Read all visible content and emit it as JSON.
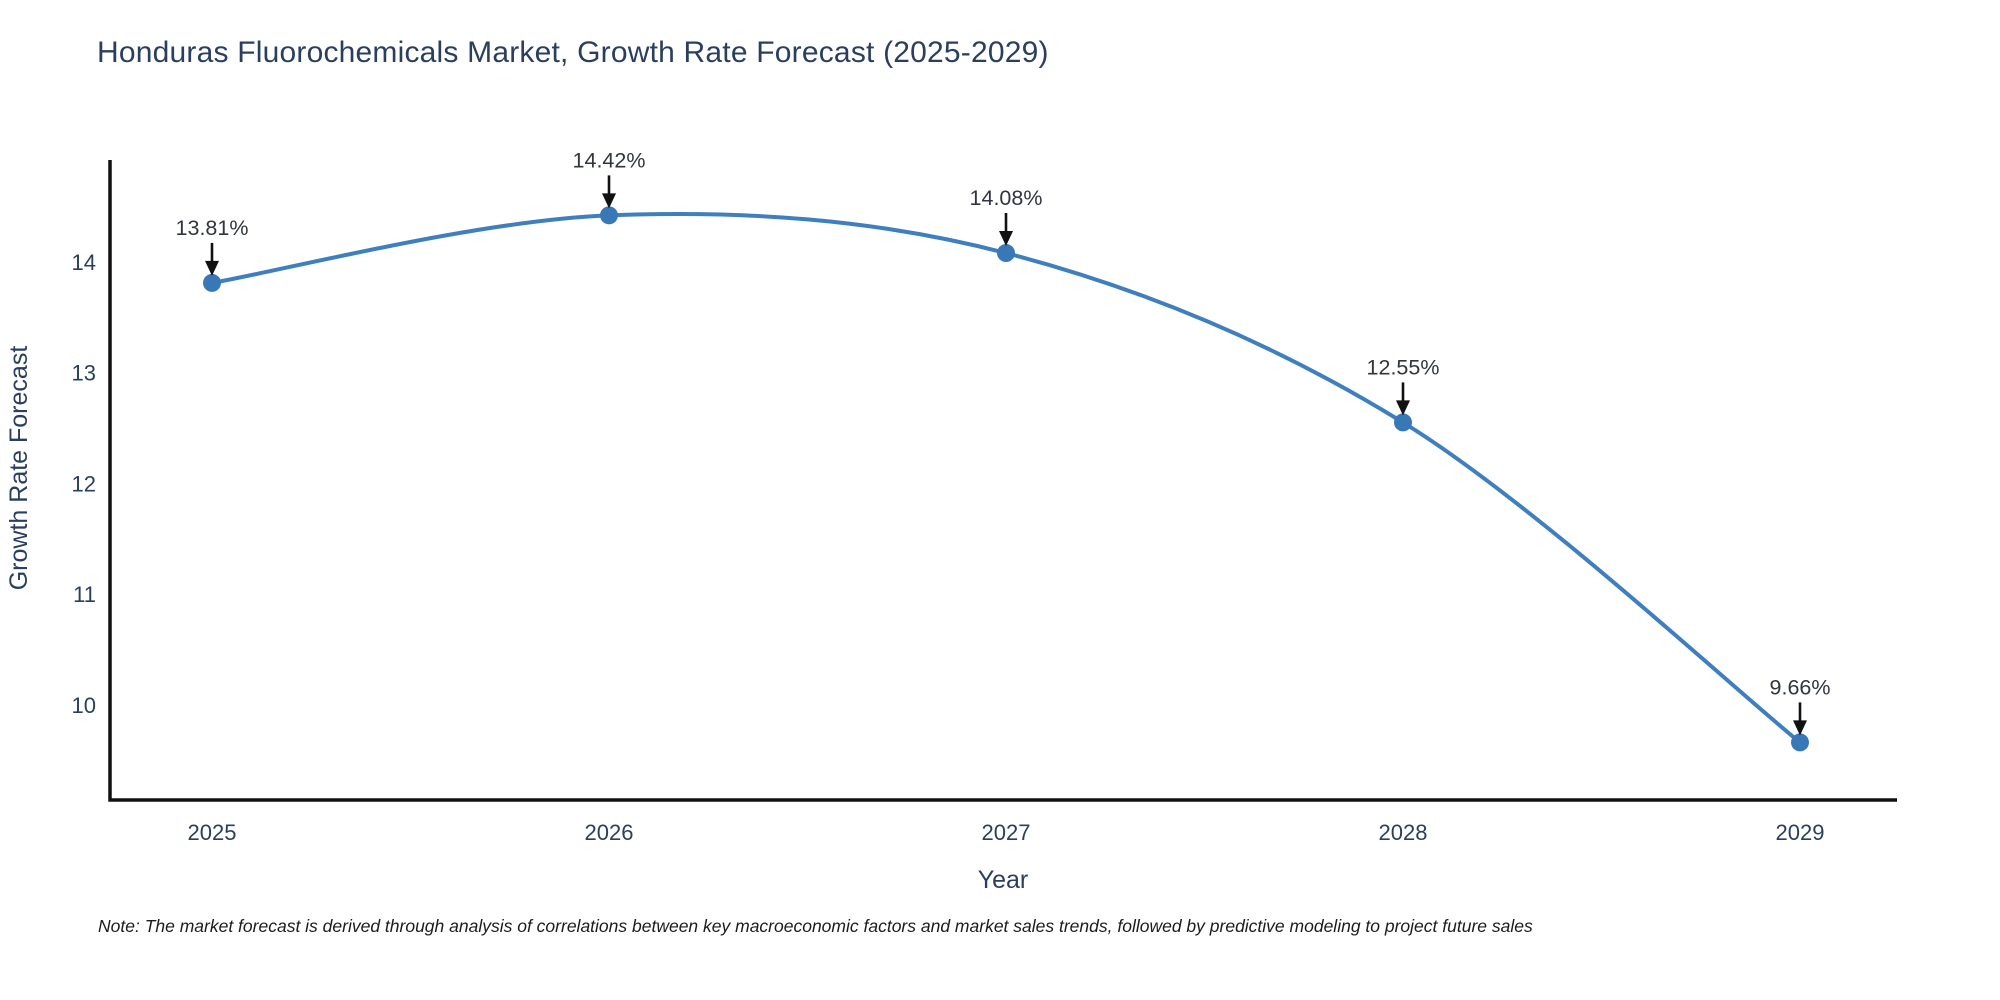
{
  "title": "Honduras Fluorochemicals Market, Growth Rate Forecast (2025-2029)",
  "note": "Note: The market forecast is derived through analysis of correlations between key macroeconomic factors and market sales trends, followed by predictive modeling to project future sales",
  "chart_data": {
    "type": "line",
    "title": "Honduras Fluorochemicals Market, Growth Rate Forecast (2025-2029)",
    "x": [
      2025,
      2026,
      2027,
      2028,
      2029
    ],
    "series": [
      {
        "name": "Growth Rate Forecast",
        "values": [
          13.81,
          14.42,
          14.08,
          12.55,
          9.66
        ]
      }
    ],
    "point_labels": [
      "13.81%",
      "14.42%",
      "14.08%",
      "12.55%",
      "9.66%"
    ],
    "xlabel": "Year",
    "ylabel": "Growth Rate Forecast",
    "yticks": [
      10,
      11,
      12,
      13,
      14
    ],
    "ylim": [
      9.14,
      14.92
    ],
    "xtick_labels": [
      "2025",
      "2026",
      "2027",
      "2028",
      "2029"
    ],
    "line_shape": "spline",
    "grid": false,
    "legend_position": "none",
    "colors": {
      "line": "#3f7fbe",
      "marker": "#3878b6",
      "axis_line": "#111111",
      "arrow": "#111111",
      "tick_text": "#2a3f5f",
      "annotation_text": "#30353f",
      "title_text": "#2a3f5f"
    }
  }
}
